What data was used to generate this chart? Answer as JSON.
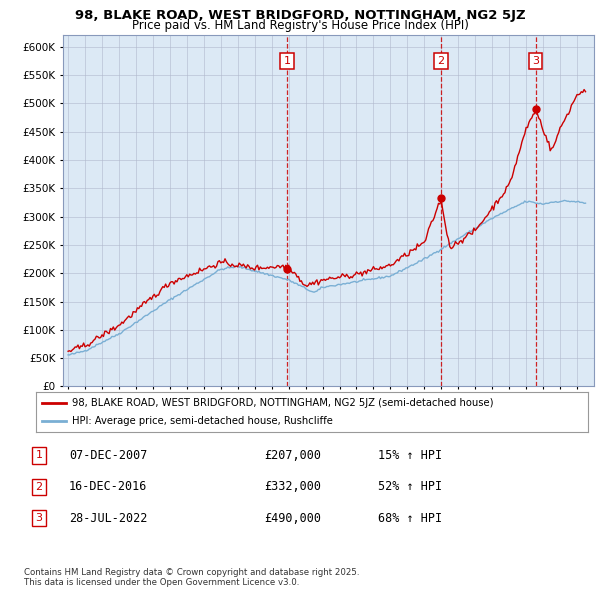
{
  "title": "98, BLAKE ROAD, WEST BRIDGFORD, NOTTINGHAM, NG2 5JZ",
  "subtitle": "Price paid vs. HM Land Registry's House Price Index (HPI)",
  "background_color": "#dce9f5",
  "plot_bg_color": "#dce9f5",
  "ylim": [
    0,
    620000
  ],
  "yticks": [
    0,
    50000,
    100000,
    150000,
    200000,
    250000,
    300000,
    350000,
    400000,
    450000,
    500000,
    550000,
    600000
  ],
  "ytick_labels": [
    "£0",
    "£50K",
    "£100K",
    "£150K",
    "£200K",
    "£250K",
    "£300K",
    "£350K",
    "£400K",
    "£450K",
    "£500K",
    "£550K",
    "£600K"
  ],
  "legend_entries": [
    {
      "label": "98, BLAKE ROAD, WEST BRIDGFORD, NOTTINGHAM, NG2 5JZ (semi-detached house)",
      "color": "#cc0000"
    },
    {
      "label": "HPI: Average price, semi-detached house, Rushcliffe",
      "color": "#7aafd4"
    }
  ],
  "table_rows": [
    {
      "num": "1",
      "date": "07-DEC-2007",
      "price": "£207,000",
      "change": "15% ↑ HPI"
    },
    {
      "num": "2",
      "date": "16-DEC-2016",
      "price": "£332,000",
      "change": "52% ↑ HPI"
    },
    {
      "num": "3",
      "date": "28-JUL-2022",
      "price": "£490,000",
      "change": "68% ↑ HPI"
    }
  ],
  "footer": "Contains HM Land Registry data © Crown copyright and database right 2025.\nThis data is licensed under the Open Government Licence v3.0.",
  "red_line_color": "#cc0000",
  "blue_line_color": "#7aafd4",
  "vline_color": "#cc0000",
  "grid_color": "#b0b8cc",
  "sale_box_color": "#cc0000",
  "sale_year_floats": [
    2007.92,
    2016.96,
    2022.56
  ],
  "sale_prices": [
    207000,
    332000,
    490000
  ],
  "sale_labels": [
    "1",
    "2",
    "3"
  ],
  "xlim_left": 1994.7,
  "xlim_right": 2026.0
}
